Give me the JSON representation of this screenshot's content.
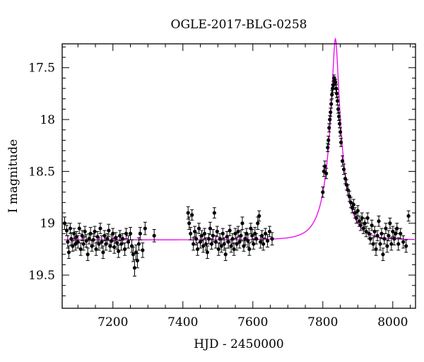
{
  "chart_data": {
    "type": "scatter",
    "title": "OGLE-2017-BLG-0258",
    "xlabel": "HJD - 2450000",
    "ylabel": "I magnitude",
    "xlim": [
      7055,
      8065
    ],
    "ylim": [
      19.82,
      17.27
    ],
    "y_inverted": true,
    "x_ticks": [
      7200,
      7400,
      7600,
      7800,
      8000
    ],
    "y_ticks": [
      17.5,
      18,
      18.5,
      19,
      19.5
    ],
    "x_tick_labels": [
      "7200",
      "7400",
      "7600",
      "7800",
      "8000"
    ],
    "y_tick_labels": [
      "17.5",
      "18",
      "18.5",
      "19",
      "19.5"
    ],
    "grid": false,
    "colors": {
      "data": "#000000",
      "model": "#ee00ee"
    },
    "model": {
      "type": "microlensing",
      "t0": 7836,
      "tE": 48,
      "u0": 0.155,
      "baseline_mag": 19.16,
      "blend_fraction": 0.9
    },
    "series": [
      {
        "points": [
          [
            7062,
            19.0,
            0.06
          ],
          [
            7068,
            19.07,
            0.05
          ],
          [
            7071,
            19.18,
            0.06
          ],
          [
            7074,
            19.28,
            0.06
          ],
          [
            7078,
            19.05,
            0.05
          ],
          [
            7081,
            19.15,
            0.06
          ],
          [
            7085,
            19.22,
            0.05
          ],
          [
            7089,
            19.1,
            0.05
          ],
          [
            7093,
            19.2,
            0.06
          ],
          [
            7096,
            19.13,
            0.05
          ],
          [
            7100,
            19.18,
            0.06
          ],
          [
            7104,
            19.05,
            0.05
          ],
          [
            7108,
            19.25,
            0.06
          ],
          [
            7112,
            19.12,
            0.05
          ],
          [
            7116,
            19.2,
            0.06
          ],
          [
            7120,
            19.08,
            0.05
          ],
          [
            7124,
            19.17,
            0.06
          ],
          [
            7128,
            19.3,
            0.06
          ],
          [
            7132,
            19.15,
            0.05
          ],
          [
            7136,
            19.1,
            0.06
          ],
          [
            7140,
            19.22,
            0.05
          ],
          [
            7144,
            19.16,
            0.06
          ],
          [
            7148,
            19.08,
            0.05
          ],
          [
            7152,
            19.25,
            0.06
          ],
          [
            7156,
            19.13,
            0.05
          ],
          [
            7160,
            19.2,
            0.06
          ],
          [
            7164,
            19.05,
            0.05
          ],
          [
            7168,
            19.18,
            0.06
          ],
          [
            7172,
            19.28,
            0.06
          ],
          [
            7176,
            19.12,
            0.05
          ],
          [
            7180,
            19.2,
            0.06
          ],
          [
            7184,
            19.15,
            0.05
          ],
          [
            7188,
            19.07,
            0.06
          ],
          [
            7192,
            19.22,
            0.05
          ],
          [
            7196,
            19.17,
            0.06
          ],
          [
            7200,
            19.1,
            0.05
          ],
          [
            7204,
            19.23,
            0.06
          ],
          [
            7208,
            19.14,
            0.05
          ],
          [
            7212,
            19.19,
            0.06
          ],
          [
            7216,
            19.27,
            0.06
          ],
          [
            7220,
            19.12,
            0.05
          ],
          [
            7224,
            19.2,
            0.06
          ],
          [
            7228,
            19.15,
            0.05
          ],
          [
            7234,
            19.25,
            0.06
          ],
          [
            7238,
            19.1,
            0.05
          ],
          [
            7244,
            19.18,
            0.06
          ],
          [
            7250,
            19.1,
            0.06
          ],
          [
            7254,
            19.22,
            0.06
          ],
          [
            7258,
            19.3,
            0.07
          ],
          [
            7262,
            19.43,
            0.08
          ],
          [
            7266,
            19.28,
            0.07
          ],
          [
            7270,
            19.36,
            0.07
          ],
          [
            7274,
            19.2,
            0.06
          ],
          [
            7278,
            19.1,
            0.06
          ],
          [
            7285,
            19.26,
            0.07
          ],
          [
            7292,
            19.05,
            0.06
          ],
          [
            7318,
            19.12,
            0.06
          ],
          [
            7415,
            18.9,
            0.06
          ],
          [
            7418,
            19.0,
            0.06
          ],
          [
            7422,
            19.1,
            0.06
          ],
          [
            7426,
            18.92,
            0.05
          ],
          [
            7430,
            19.2,
            0.06
          ],
          [
            7434,
            19.08,
            0.05
          ],
          [
            7438,
            19.15,
            0.06
          ],
          [
            7442,
            19.25,
            0.06
          ],
          [
            7446,
            19.05,
            0.05
          ],
          [
            7450,
            19.18,
            0.06
          ],
          [
            7454,
            19.12,
            0.05
          ],
          [
            7458,
            19.22,
            0.06
          ],
          [
            7462,
            19.1,
            0.05
          ],
          [
            7466,
            19.2,
            0.06
          ],
          [
            7470,
            19.28,
            0.06
          ],
          [
            7474,
            19.15,
            0.05
          ],
          [
            7478,
            19.05,
            0.06
          ],
          [
            7482,
            19.2,
            0.05
          ],
          [
            7486,
            19.12,
            0.06
          ],
          [
            7490,
            18.9,
            0.05
          ],
          [
            7494,
            19.18,
            0.06
          ],
          [
            7498,
            19.08,
            0.05
          ],
          [
            7502,
            19.25,
            0.06
          ],
          [
            7506,
            19.15,
            0.05
          ],
          [
            7510,
            19.22,
            0.06
          ],
          [
            7514,
            19.1,
            0.05
          ],
          [
            7518,
            19.2,
            0.06
          ],
          [
            7522,
            19.3,
            0.06
          ],
          [
            7526,
            19.13,
            0.05
          ],
          [
            7530,
            19.18,
            0.06
          ],
          [
            7534,
            19.07,
            0.05
          ],
          [
            7538,
            19.22,
            0.06
          ],
          [
            7542,
            19.15,
            0.05
          ],
          [
            7546,
            19.25,
            0.06
          ],
          [
            7550,
            19.1,
            0.05
          ],
          [
            7554,
            19.2,
            0.06
          ],
          [
            7558,
            19.08,
            0.05
          ],
          [
            7562,
            19.18,
            0.06
          ],
          [
            7566,
            19.12,
            0.05
          ],
          [
            7570,
            19.0,
            0.06
          ],
          [
            7574,
            19.22,
            0.05
          ],
          [
            7578,
            19.15,
            0.06
          ],
          [
            7582,
            19.1,
            0.05
          ],
          [
            7586,
            19.17,
            0.06
          ],
          [
            7590,
            19.25,
            0.06
          ],
          [
            7594,
            19.05,
            0.05
          ],
          [
            7598,
            19.12,
            0.06
          ],
          [
            7602,
            19.2,
            0.05
          ],
          [
            7606,
            19.1,
            0.06
          ],
          [
            7610,
            19.15,
            0.05
          ],
          [
            7614,
            19.0,
            0.06
          ],
          [
            7618,
            18.93,
            0.05
          ],
          [
            7622,
            19.18,
            0.06
          ],
          [
            7626,
            19.12,
            0.05
          ],
          [
            7630,
            19.2,
            0.06
          ],
          [
            7636,
            19.1,
            0.05
          ],
          [
            7642,
            19.17,
            0.06
          ],
          [
            7648,
            19.08,
            0.05
          ],
          [
            7655,
            19.15,
            0.06
          ],
          [
            7800,
            18.7,
            0.05
          ],
          [
            7803,
            18.5,
            0.05
          ],
          [
            7806,
            18.45,
            0.05
          ],
          [
            7810,
            18.52,
            0.05
          ],
          [
            7814,
            18.27,
            0.04
          ],
          [
            7816,
            18.2,
            0.04
          ],
          [
            7818,
            18.08,
            0.04
          ],
          [
            7820,
            18.0,
            0.04
          ],
          [
            7822,
            17.93,
            0.04
          ],
          [
            7824,
            17.85,
            0.04
          ],
          [
            7826,
            17.76,
            0.04
          ],
          [
            7828,
            17.7,
            0.04
          ],
          [
            7830,
            17.67,
            0.04
          ],
          [
            7832,
            17.6,
            0.03
          ],
          [
            7834,
            17.62,
            0.03
          ],
          [
            7836,
            17.64,
            0.03
          ],
          [
            7838,
            17.7,
            0.04
          ],
          [
            7840,
            17.75,
            0.04
          ],
          [
            7842,
            17.82,
            0.04
          ],
          [
            7844,
            17.9,
            0.04
          ],
          [
            7846,
            17.97,
            0.04
          ],
          [
            7848,
            18.04,
            0.04
          ],
          [
            7850,
            18.12,
            0.04
          ],
          [
            7852,
            18.22,
            0.04
          ],
          [
            7856,
            18.4,
            0.05
          ],
          [
            7860,
            18.48,
            0.05
          ],
          [
            7864,
            18.57,
            0.05
          ],
          [
            7868,
            18.63,
            0.05
          ],
          [
            7872,
            18.68,
            0.05
          ],
          [
            7876,
            18.74,
            0.05
          ],
          [
            7880,
            18.8,
            0.05
          ],
          [
            7884,
            18.85,
            0.05
          ],
          [
            7888,
            18.82,
            0.05
          ],
          [
            7892,
            18.9,
            0.05
          ],
          [
            7896,
            18.95,
            0.05
          ],
          [
            7900,
            18.88,
            0.05
          ],
          [
            7904,
            18.98,
            0.05
          ],
          [
            7908,
            19.02,
            0.05
          ],
          [
            7912,
            18.95,
            0.05
          ],
          [
            7916,
            19.05,
            0.05
          ],
          [
            7920,
            19.0,
            0.05
          ],
          [
            7924,
            19.08,
            0.05
          ],
          [
            7928,
            18.95,
            0.05
          ],
          [
            7932,
            19.1,
            0.05
          ],
          [
            7936,
            19.15,
            0.05
          ],
          [
            7940,
            19.02,
            0.05
          ],
          [
            7944,
            19.2,
            0.06
          ],
          [
            7948,
            19.08,
            0.05
          ],
          [
            7952,
            19.25,
            0.06
          ],
          [
            7956,
            19.12,
            0.05
          ],
          [
            7960,
            18.98,
            0.05
          ],
          [
            7964,
            19.2,
            0.06
          ],
          [
            7968,
            19.1,
            0.05
          ],
          [
            7972,
            19.3,
            0.06
          ],
          [
            7976,
            19.15,
            0.05
          ],
          [
            7980,
            19.05,
            0.05
          ],
          [
            7984,
            19.22,
            0.06
          ],
          [
            7988,
            19.12,
            0.05
          ],
          [
            7992,
            19.0,
            0.05
          ],
          [
            7996,
            19.2,
            0.06
          ],
          [
            8000,
            19.08,
            0.05
          ],
          [
            8004,
            19.15,
            0.06
          ],
          [
            8008,
            19.1,
            0.05
          ],
          [
            8012,
            19.05,
            0.05
          ],
          [
            8016,
            19.2,
            0.06
          ],
          [
            8022,
            19.1,
            0.05
          ],
          [
            8030,
            19.18,
            0.06
          ],
          [
            8038,
            19.22,
            0.06
          ],
          [
            8045,
            18.93,
            0.05
          ]
        ]
      }
    ]
  }
}
